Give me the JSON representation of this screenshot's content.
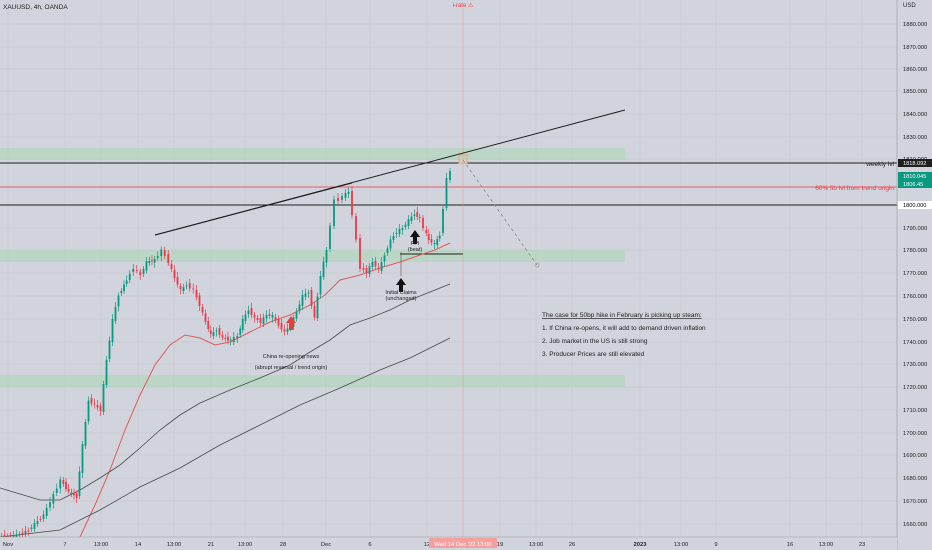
{
  "symbol": {
    "title": "XAUUSD, 4h, OANDA"
  },
  "event_marker": {
    "label": "i-rate ⚠"
  },
  "currency": "USD",
  "colors": {
    "background": "#d1d4dc",
    "up": "#089981",
    "down": "#f23645",
    "ma_red": "#e05a5a",
    "ma_dark": "#444444",
    "zone": "#a9d7b5",
    "fib": "#f23645"
  },
  "price_axis": {
    "ticks": [
      "1880.000",
      "1870.000",
      "1860.000",
      "1850.000",
      "1840.000",
      "1830.000",
      "1810.000",
      "1790.000",
      "1780.000",
      "1770.000",
      "1760.000",
      "1750.000",
      "1740.000",
      "1730.000",
      "1720.000",
      "1710.000",
      "1700.000",
      "1690.000",
      "1680.000",
      "1670.000",
      "1660.000"
    ],
    "badges": [
      {
        "text": "1818.092",
        "color": "#ffffff",
        "bg": "#1e1e1e"
      },
      {
        "text": "1810.045",
        "color": "#ffffff",
        "bg": "#089981"
      },
      {
        "text": "1806.45",
        "color": "#ffffff",
        "bg": "#089981"
      },
      {
        "text": "1800.000",
        "color": "#000000",
        "bg": "#ffffff"
      }
    ]
  },
  "time_axis": {
    "ticks": [
      "Nov",
      "7",
      "13:00",
      "14",
      "13:00",
      "21",
      "13:00",
      "28",
      "Dec",
      "6",
      "12",
      "19",
      "13:00",
      "26",
      "2023",
      "13:00",
      "9",
      "16",
      "13:00",
      "23",
      "13:00"
    ],
    "badge": "Wed 14 Dec '22  13:00"
  },
  "annotations": {
    "weekly_lvl": "weekly lvl",
    "fib": "60% fib lvl from trend origin",
    "china_title": "China re-opening news",
    "china_sub": "(abrupt reversal / trend origin)",
    "ppi_title": "PPI",
    "ppi_sub": "(beat)",
    "claims_title": "Initial Claims",
    "claims_sub": "(unchanged)"
  },
  "note": {
    "title": "The case for 50bp hike in February is picking up steam:",
    "items": [
      "1. If China re-opens, it will add to demand driven inflation",
      "2. Job market in the US is still strong",
      "3. Producer Prices are still elevated"
    ]
  }
}
